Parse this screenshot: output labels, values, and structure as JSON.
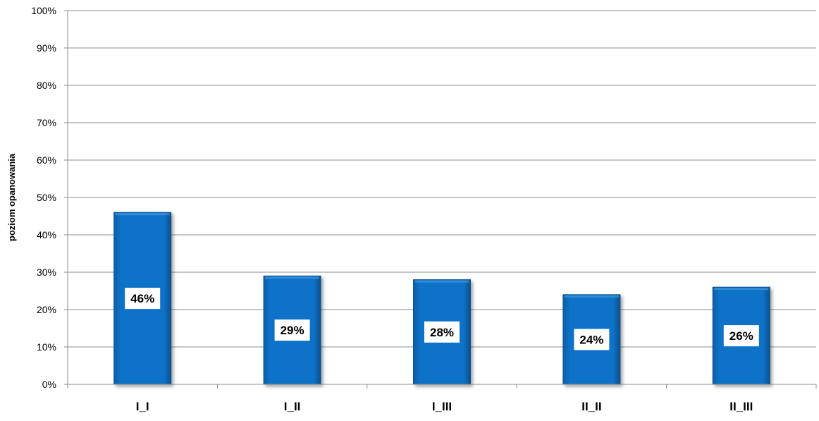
{
  "chart_data": {
    "type": "bar",
    "categories": [
      "I_I",
      "I_II",
      "I_III",
      "II_II",
      "II_III"
    ],
    "values": [
      46,
      29,
      28,
      24,
      26
    ],
    "data_labels": [
      "46%",
      "29%",
      "28%",
      "24%",
      "26%"
    ],
    "title": "",
    "xlabel": "",
    "ylabel": "poziom opanowania",
    "ylim": [
      0,
      100
    ],
    "yticks": [
      0,
      10,
      20,
      30,
      40,
      50,
      60,
      70,
      80,
      90,
      100
    ],
    "ytick_labels": [
      "0%",
      "10%",
      "20%",
      "30%",
      "40%",
      "50%",
      "60%",
      "70%",
      "80%",
      "90%",
      "100%"
    ],
    "grid": true,
    "legend": "none",
    "bar_color": "#0A72C8",
    "bar_edge_color": "#0A4F8C"
  }
}
